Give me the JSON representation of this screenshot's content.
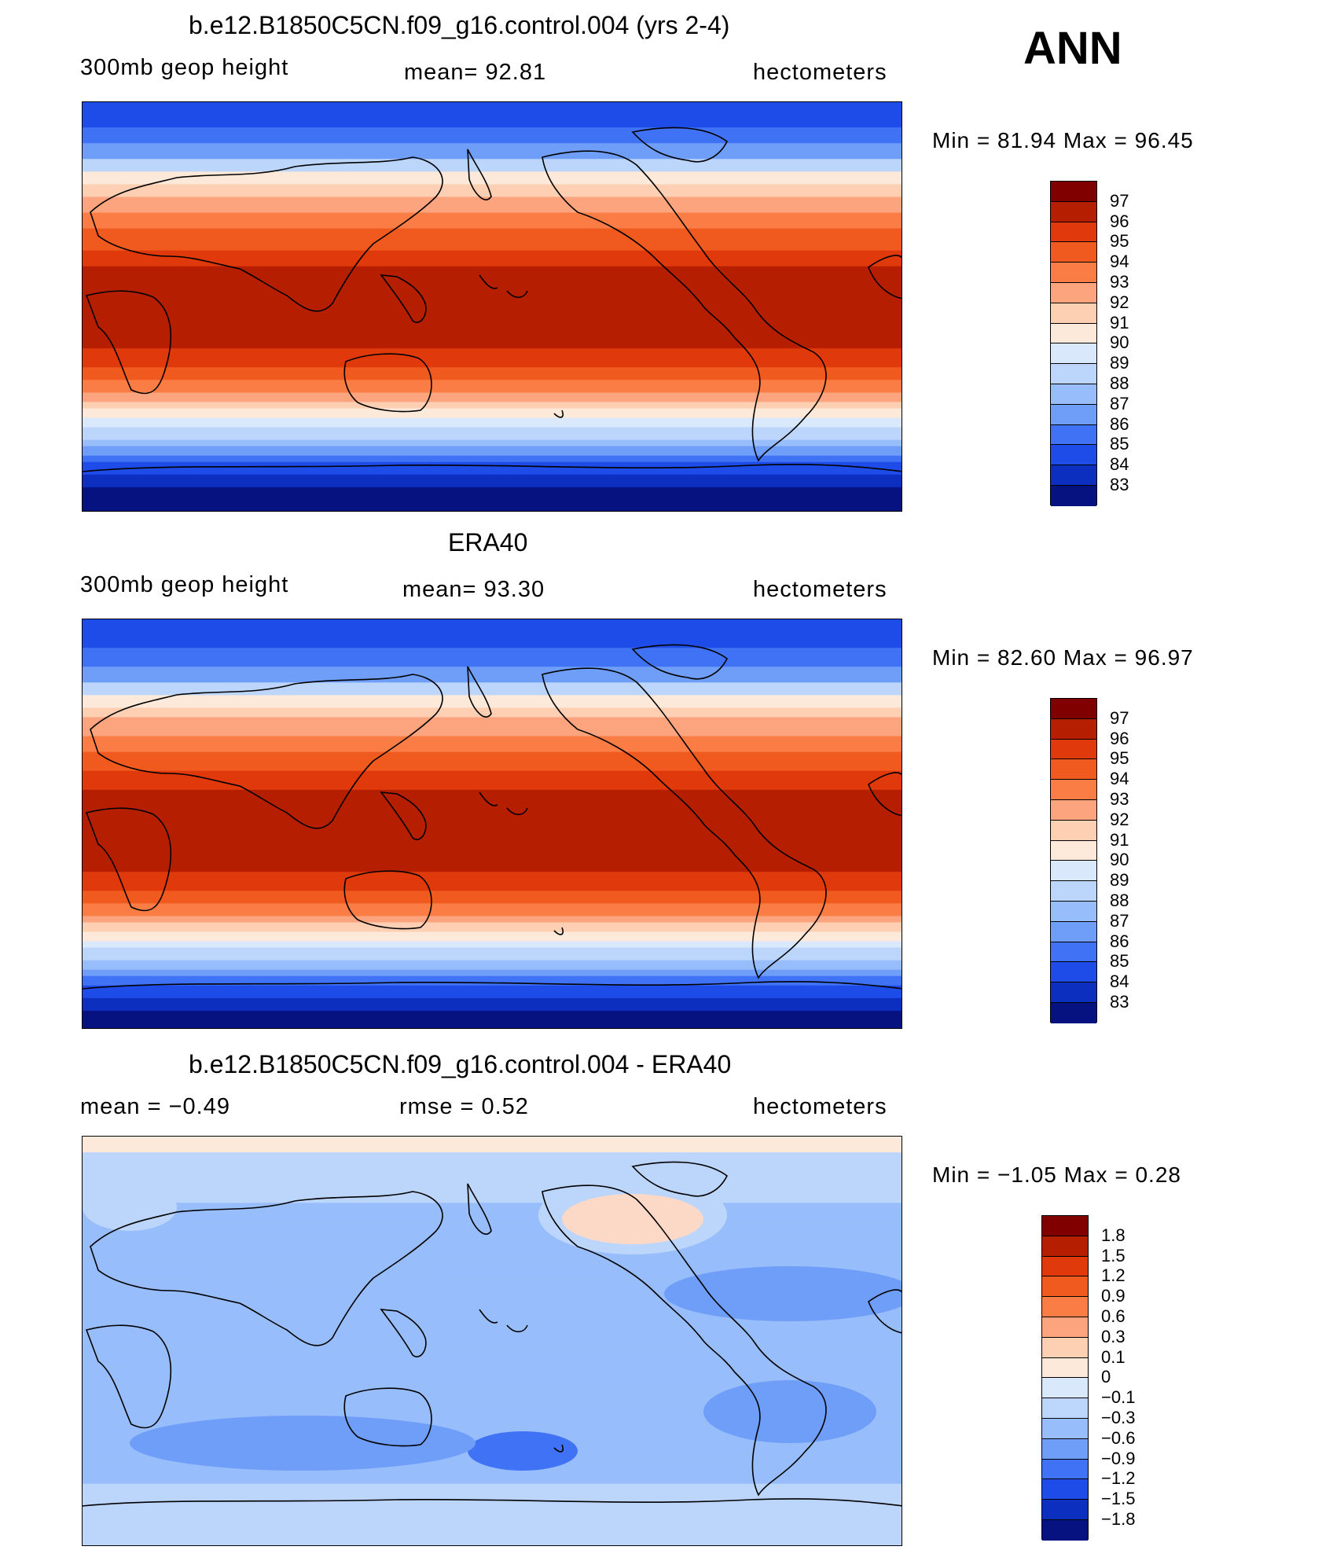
{
  "main_title": "ANN",
  "panels": [
    {
      "title": "b.e12.B1850C5CN.f09_g16.control.004 (yrs 2-4)",
      "left_label": "300mb  geop  height",
      "center_label": "mean=   92.81",
      "right_label": "hectometers",
      "minmax": "Min  =    81.94  Max  =    96.45",
      "field": "model",
      "colorbar": {
        "colors": [
          "#800000",
          "#b51f00",
          "#e0390b",
          "#f15a1f",
          "#fa7d45",
          "#fca47e",
          "#fdcfb3",
          "#fde9d9",
          "#d9e9fb",
          "#bcd5fb",
          "#98bdfb",
          "#6f9ef8",
          "#3f72f4",
          "#1e4ce8",
          "#0d2fc0",
          "#06127f"
        ],
        "labels": [
          "97",
          "96",
          "95",
          "94",
          "93",
          "92",
          "91",
          "90",
          "89",
          "88",
          "87",
          "86",
          "85",
          "84",
          "83"
        ]
      }
    },
    {
      "title": "ERA40",
      "left_label": "300mb  geop  height",
      "center_label": "mean=   93.30",
      "right_label": "hectometers",
      "minmax": "Min  =    82.60  Max  =    96.97",
      "field": "obs",
      "colorbar": {
        "colors": [
          "#800000",
          "#b51f00",
          "#e0390b",
          "#f15a1f",
          "#fa7d45",
          "#fca47e",
          "#fdcfb3",
          "#fde9d9",
          "#d9e9fb",
          "#bcd5fb",
          "#98bdfb",
          "#6f9ef8",
          "#3f72f4",
          "#1e4ce8",
          "#0d2fc0",
          "#06127f"
        ],
        "labels": [
          "97",
          "96",
          "95",
          "94",
          "93",
          "92",
          "91",
          "90",
          "89",
          "88",
          "87",
          "86",
          "85",
          "84",
          "83"
        ]
      }
    },
    {
      "title": "b.e12.B1850C5CN.f09_g16.control.004 - ERA40",
      "left_label": "mean  =    −0.49",
      "center_label": "rmse  =     0.52",
      "right_label": "hectometers",
      "minmax": "Min  =   −1.05  Max  =     0.28",
      "field": "diff",
      "colorbar": {
        "colors": [
          "#800000",
          "#b51f00",
          "#e0390b",
          "#f15a1f",
          "#fa7d45",
          "#fca47e",
          "#fdcfb3",
          "#fde9d9",
          "#d9e9fb",
          "#bcd5fb",
          "#98bdfb",
          "#6f9ef8",
          "#3f72f4",
          "#1e4ce8",
          "#0d2fc0",
          "#06127f"
        ],
        "labels": [
          "1.8",
          "1.5",
          "1.2",
          "0.9",
          "0.6",
          "0.3",
          "0.1",
          "0",
          "−0.1",
          "−0.3",
          "−0.6",
          "−0.9",
          "−1.2",
          "−1.5",
          "−1.8"
        ]
      }
    }
  ]
}
